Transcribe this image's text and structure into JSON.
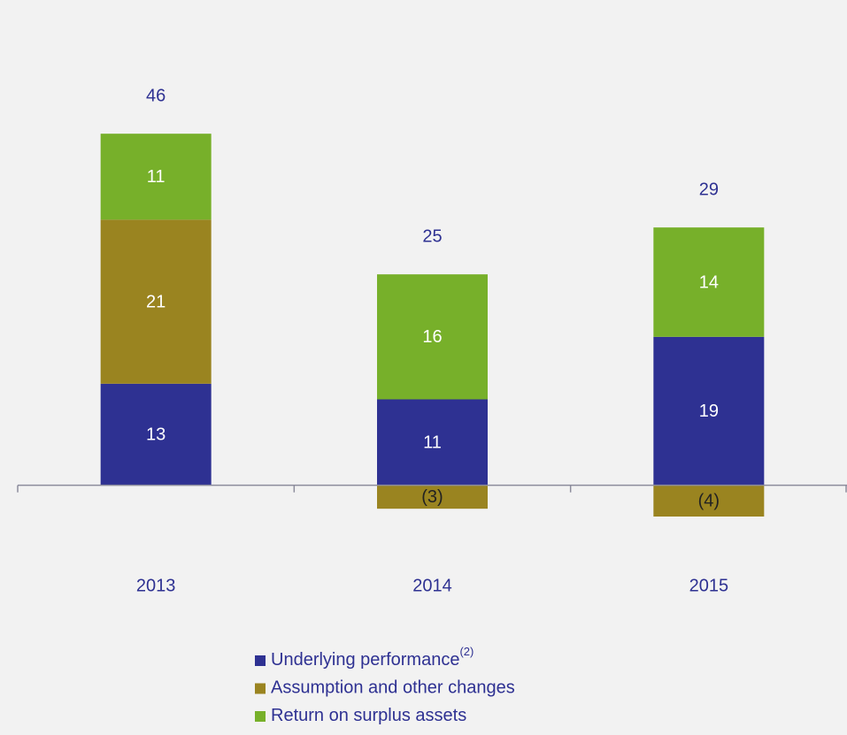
{
  "chart_data": {
    "type": "stacked-bar",
    "categories": [
      "2013",
      "2014",
      "2015"
    ],
    "series": [
      {
        "name": "Underlying performance",
        "footnote_marker": "(2)",
        "color": "#2e3192",
        "values": [
          13,
          11,
          19
        ],
        "value_labels": [
          "13",
          "11",
          "19"
        ]
      },
      {
        "name": "Assumption and other changes",
        "color": "#9a8420",
        "values": [
          21,
          -3,
          -4
        ],
        "value_labels": [
          "21",
          "(3)",
          "(4)"
        ]
      },
      {
        "name": "Return on surplus assets",
        "color": "#77b02a",
        "values": [
          11,
          16,
          14
        ],
        "value_labels": [
          "11",
          "16",
          "14"
        ]
      }
    ],
    "totals": [
      46,
      25,
      29
    ],
    "ylim": [
      -10,
      50
    ]
  }
}
